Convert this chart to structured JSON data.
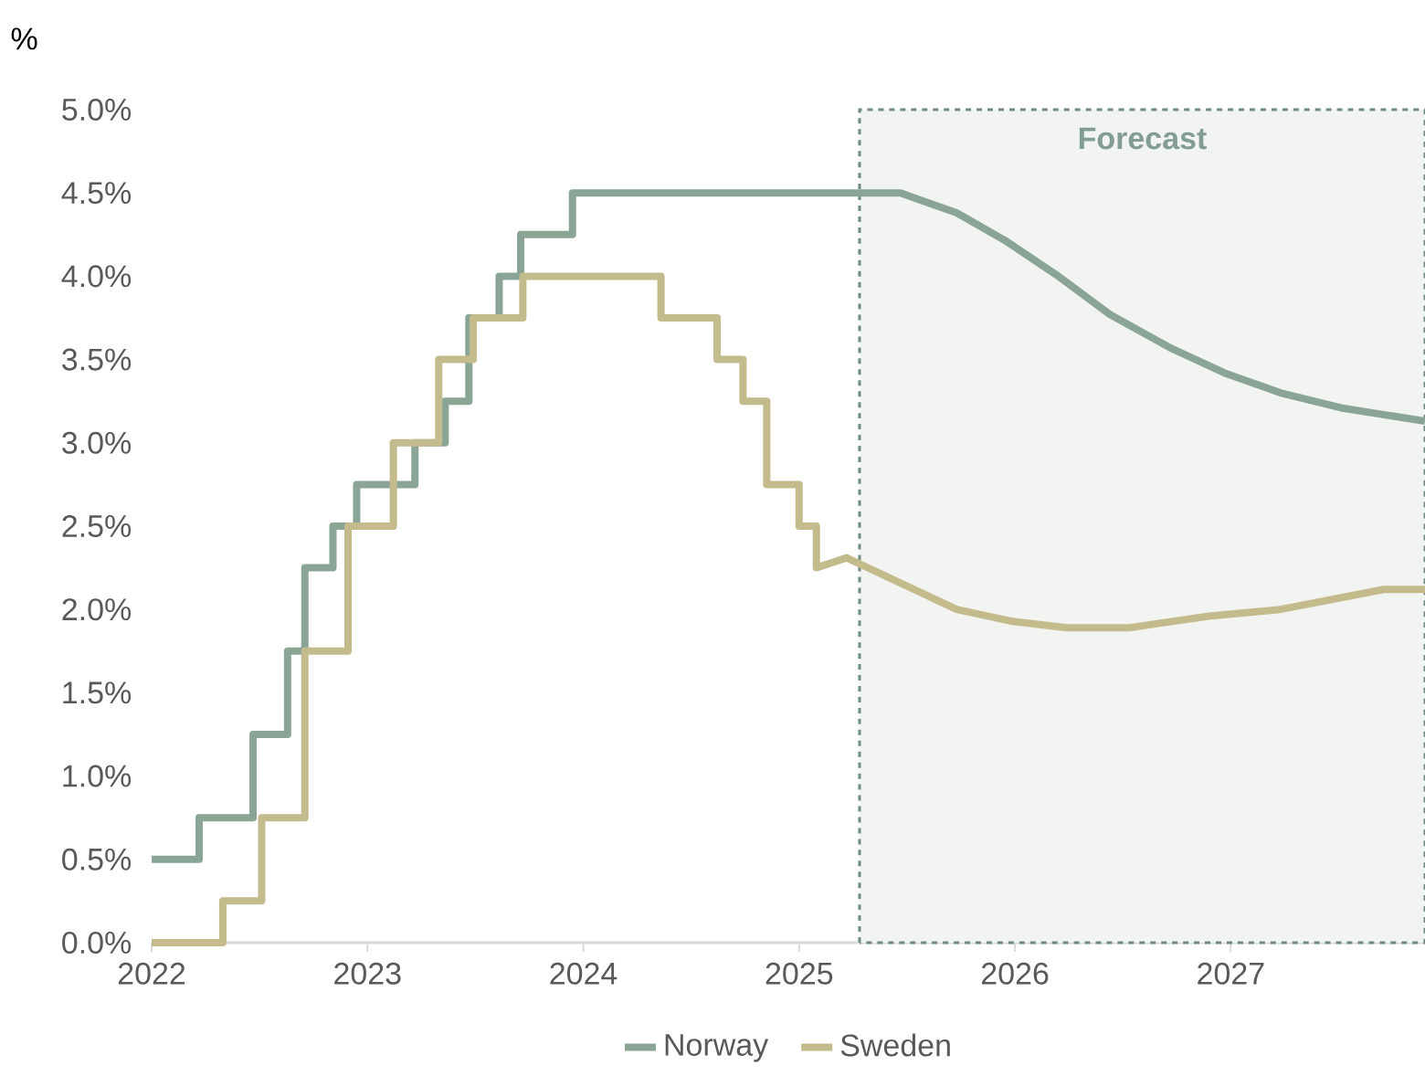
{
  "chart_data": {
    "type": "line",
    "ylabel": "%",
    "xlim": [
      2022,
      2027.9
    ],
    "ylim": [
      0,
      5
    ],
    "xticks": [
      2022,
      2023,
      2024,
      2025,
      2026,
      2027
    ],
    "yticks": [
      {
        "value": 0,
        "label": "0.0%"
      },
      {
        "value": 0.5,
        "label": "0.5%"
      },
      {
        "value": 1,
        "label": "1.0%"
      },
      {
        "value": 1.5,
        "label": "1.5%"
      },
      {
        "value": 2,
        "label": "2.0%"
      },
      {
        "value": 2.5,
        "label": "2.5%"
      },
      {
        "value": 3,
        "label": "3.0%"
      },
      {
        "value": 3.5,
        "label": "3.5%"
      },
      {
        "value": 4,
        "label": "4.0%"
      },
      {
        "value": 4.5,
        "label": "4.5%"
      },
      {
        "value": 5,
        "label": "5.0%"
      }
    ],
    "grid": false,
    "legend": "bottom",
    "line_style": "solid",
    "marker": "none",
    "bands": [
      {
        "axis": "x",
        "from": 2025.28,
        "to": 2027.9,
        "label": "Forecast",
        "color": "#f2f4f2"
      }
    ],
    "series": [
      {
        "name": "Norway",
        "color": "#8aa596",
        "x": [
          2022,
          2022.22,
          2022.22,
          2022.47,
          2022.47,
          2022.63,
          2022.63,
          2022.71,
          2022.71,
          2022.84,
          2022.84,
          2022.95,
          2022.95,
          2023.22,
          2023.22,
          2023.36,
          2023.36,
          2023.47,
          2023.47,
          2023.61,
          2023.61,
          2023.71,
          2023.71,
          2023.95,
          2023.95,
          2025.47,
          2025.73,
          2025.96,
          2026.19,
          2026.44,
          2026.72,
          2026.97,
          2027.23,
          2027.51,
          2027.9
        ],
        "values": [
          0.5,
          0.5,
          0.75,
          0.75,
          1.25,
          1.25,
          1.75,
          1.75,
          2.25,
          2.25,
          2.5,
          2.5,
          2.75,
          2.75,
          3.0,
          3.0,
          3.25,
          3.25,
          3.75,
          3.75,
          4.0,
          4.0,
          4.25,
          4.25,
          4.5,
          4.5,
          4.38,
          4.21,
          4.01,
          3.77,
          3.57,
          3.42,
          3.3,
          3.21,
          3.13
        ]
      },
      {
        "name": "Sweden",
        "color": "#c4bb8c",
        "x": [
          2022,
          2022.33,
          2022.33,
          2022.51,
          2022.51,
          2022.71,
          2022.71,
          2022.91,
          2022.91,
          2023.12,
          2023.12,
          2023.33,
          2023.33,
          2023.49,
          2023.49,
          2023.72,
          2023.72,
          2024.36,
          2024.36,
          2024.62,
          2024.62,
          2024.74,
          2024.74,
          2024.85,
          2024.85,
          2025.0,
          2025.0,
          2025.08,
          2025.08,
          2025.22,
          2025.73,
          2025.98,
          2026.24,
          2026.53,
          2026.9,
          2027.23,
          2027.71,
          2027.9
        ],
        "values": [
          0,
          0,
          0.25,
          0.25,
          0.75,
          0.75,
          1.75,
          1.75,
          2.5,
          2.5,
          3.0,
          3.0,
          3.5,
          3.5,
          3.75,
          3.75,
          4.0,
          4.0,
          3.75,
          3.75,
          3.5,
          3.5,
          3.25,
          3.25,
          2.75,
          2.75,
          2.5,
          2.5,
          2.25,
          2.31,
          2.0,
          1.93,
          1.89,
          1.89,
          1.96,
          2.0,
          2.12,
          2.12
        ]
      }
    ]
  }
}
